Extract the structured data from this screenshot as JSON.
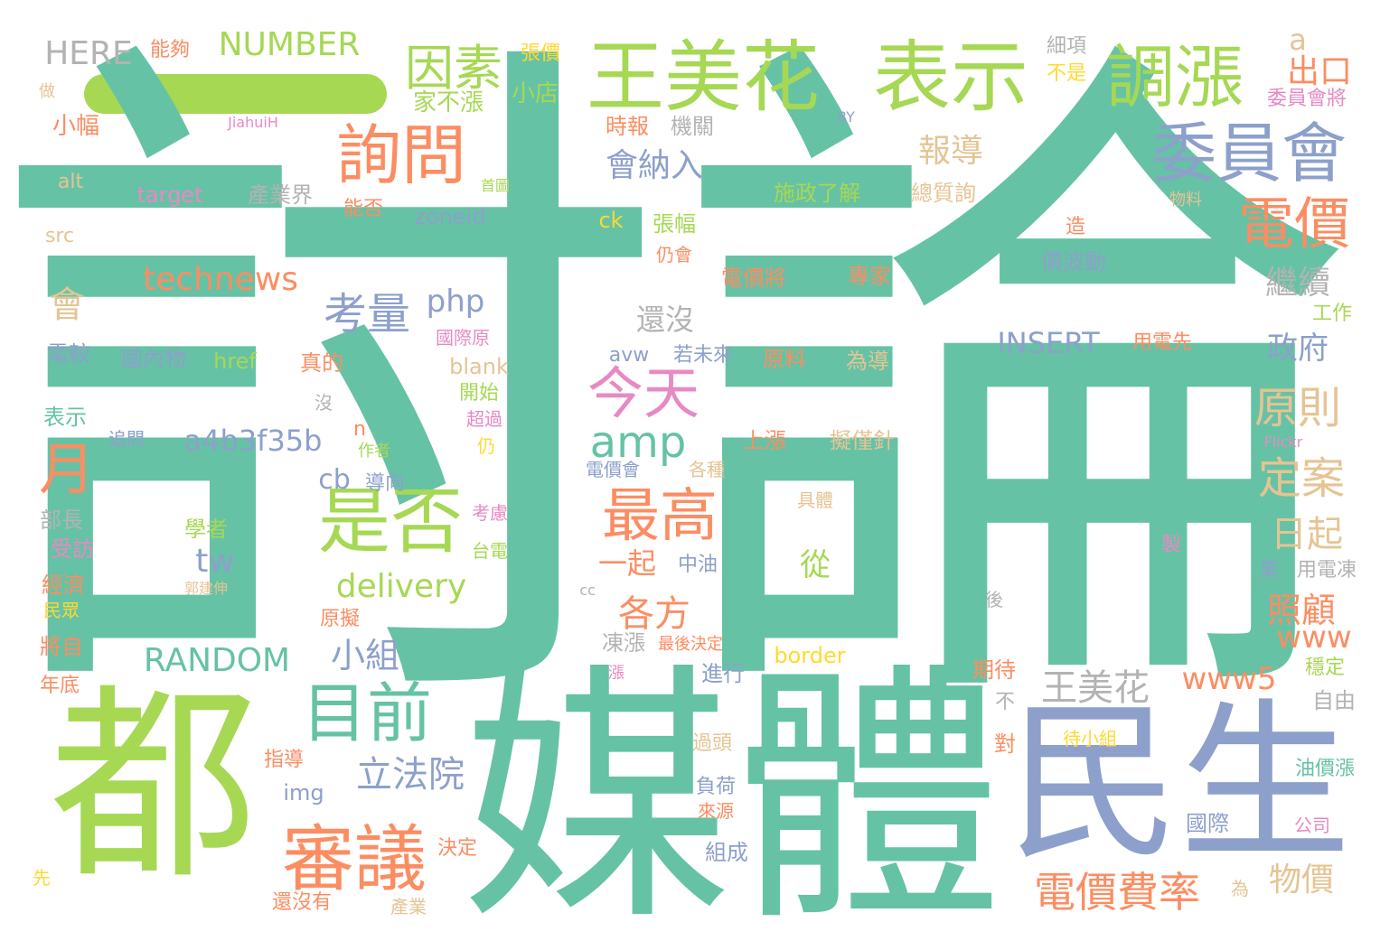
{
  "colors": {
    "green": "#a6d854",
    "teal": "#66c2a5",
    "orange": "#fc8d62",
    "blue": "#8da0cb",
    "pink": "#e78ac3",
    "yellow": "#ffd92f",
    "tan": "#e5c494",
    "gray": "#b3b3b3",
    "background": "#ffffff"
  },
  "words": {
    "w0": "討論",
    "w1": "媒體",
    "w2": "都",
    "w3": "民生",
    "w4": "王美花",
    "w5": "表示",
    "w6": "調漲",
    "w7": "委員會",
    "w8": "詢問",
    "w9": "因素",
    "w10": "電價",
    "w11": "是否",
    "w12": "審議",
    "w13": "目前",
    "w14": "月",
    "w15": "今天",
    "w16": "最高",
    "w17": "amp",
    "w18": "考量",
    "w19": "technews",
    "w20": "電價費率",
    "w21": "原則",
    "w22": "定案",
    "w23": "日起",
    "w24": "王美花",
    "w25": "立法院",
    "w26": "各方",
    "w27": "小組",
    "w28": "delivery",
    "w29": "RANDOM",
    "w30": "www5",
    "w31": "www",
    "w32": "照顧",
    "w33": "物價",
    "w34": "政府",
    "w35": "繼續",
    "w36": "報導",
    "w37": "會納入",
    "w38": "NUMBER",
    "w39": "HERE",
    "w40": "出口",
    "w41": "a",
    "w42": "a4b3f35b",
    "w43": "php",
    "w44": "INSERT",
    "w45": "還沒",
    "w46": "一起",
    "w47": "從",
    "w48": "tw",
    "w49": "cb",
    "w50": "會",
    "w51": "能夠",
    "w52": "張價",
    "w53": "小店",
    "w54": "家不漲",
    "w55": "細項",
    "w56": "不是",
    "w57": "委員會將",
    "w58": "時報",
    "w59": "機關",
    "w60": "施政了解",
    "w61": "總質詢",
    "w62": "target",
    "w63": "產業界",
    "w64": "zoneid",
    "w65": "能否",
    "w66": "張幅",
    "w67": "ck",
    "w68": "仍會",
    "w69": "電價將",
    "w70": "專家",
    "w71": "價波動",
    "w72": "造",
    "w73": "工作",
    "w74": "用電先",
    "w75": "國際原",
    "w76": "國內物",
    "w77": "href",
    "w78": "avw",
    "w79": "若未來",
    "w80": "原料",
    "w81": "為導",
    "w82": "blank",
    "w83": "真的",
    "w84": "開始",
    "w85": "超過",
    "w86": "仍",
    "w87": "追問",
    "w88": "上漲",
    "w89": "擬僅針",
    "w90": "作者",
    "w91": "導向",
    "w92": "電價會",
    "w93": "各種",
    "w94": "考慮",
    "w95": "台電",
    "w96": "中油",
    "w97": "學者",
    "w98": "郭建伸",
    "w99": "具體",
    "w100": "製",
    "w101": "業",
    "w102": "用電凍",
    "w103": "cc",
    "w104": "後",
    "w105": "原擬",
    "w106": "凍漲",
    "w107": "最後決定",
    "w108": "border",
    "w109": "進行",
    "w110": "漲",
    "w111": "期待",
    "w112": "穩定",
    "w113": "自由",
    "w114": "不",
    "w115": "對",
    "w116": "待小組",
    "w117": "指導",
    "w118": "img",
    "w119": "過頭",
    "w120": "負荷",
    "w121": "來源",
    "w122": "油價漲",
    "w123": "國際",
    "w124": "公司",
    "w125": "組成",
    "w126": "決定",
    "w127": "還沒有",
    "w128": "產業",
    "w129": "為",
    "w130": "先",
    "w131": "年底",
    "w132": "將自",
    "w133": "民眾",
    "w134": "經濟",
    "w135": "受訪",
    "w136": "部長",
    "w137": "表示",
    "w138": "電較",
    "w139": "小幅",
    "w140": "做",
    "w141": "alt",
    "w142": "src",
    "w143": "JiahuiH",
    "w144": "BY",
    "w145": "Flickr",
    "w146": "首圖",
    "w147": "物料",
    "w148": "n",
    "w149": "沒"
  }
}
